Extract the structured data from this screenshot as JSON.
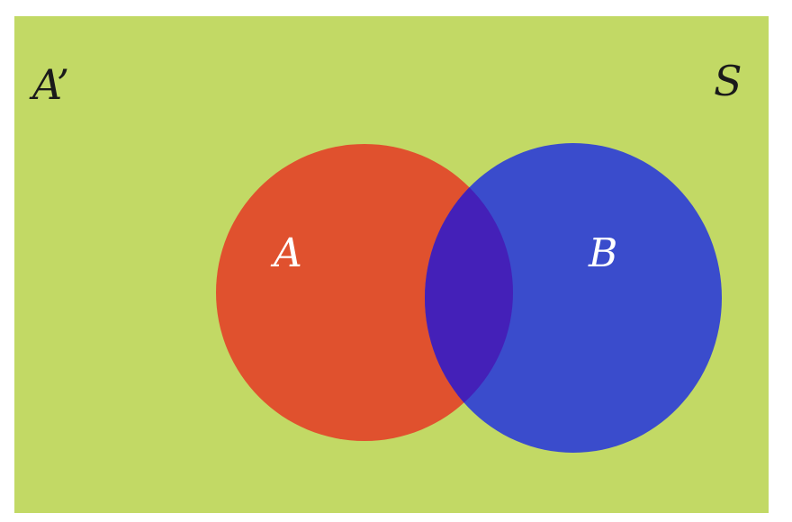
{
  "diagram": {
    "type": "venn",
    "colors": {
      "universe": "#c2d965",
      "set_a": "#e0512e",
      "set_b": "#3a4ccc",
      "overlap": "#4420b8"
    },
    "labels": {
      "complement": "A’",
      "universe": "S",
      "set_a": "A",
      "set_b": "B"
    }
  }
}
